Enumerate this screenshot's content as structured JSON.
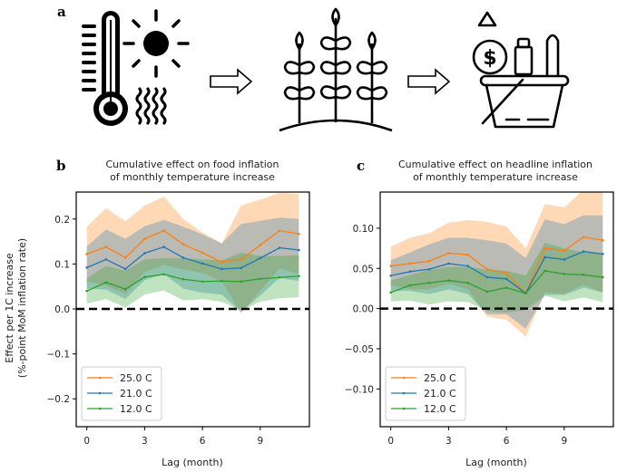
{
  "panel_labels": {
    "a": "a",
    "b": "b",
    "c": "c"
  },
  "icons": [
    "thermometer-sun-heat-icon",
    "arrow-right-icon",
    "crops-plants-icon",
    "arrow-right-icon",
    "grocery-basket-price-icon"
  ],
  "icon_text": {
    "dollar": "$"
  },
  "chart_data": [
    {
      "type": "line",
      "title_line1": "Cumulative effect on food inflation",
      "title_line2": "of monthly temperature increase",
      "xlabel": "Lag (month)",
      "ylabel_line1": "Effect per 1C increase",
      "ylabel_line2": "(%-point MoM inflation rate)",
      "x": [
        0,
        1,
        2,
        3,
        4,
        5,
        6,
        7,
        8,
        9,
        10,
        11
      ],
      "xticks": [
        0,
        3,
        6,
        9
      ],
      "xtick_labels": [
        "0",
        "3",
        "6",
        "9"
      ],
      "xlim": [
        -0.55,
        11.55
      ],
      "ylim": [
        -0.262,
        0.26
      ],
      "yticks": [
        -0.2,
        -0.1,
        0.0,
        0.1,
        0.2
      ],
      "ytick_labels": [
        "−0.2",
        "−0.1",
        "0.0",
        "0.1",
        "0.2"
      ],
      "reference_line": 0,
      "legend_position": "lower-left",
      "series": [
        {
          "name": "25.0 C",
          "color": "#ff7f0e",
          "values": [
            0.122,
            0.138,
            0.114,
            0.156,
            0.174,
            0.144,
            0.125,
            0.104,
            0.11,
            0.142,
            0.174,
            0.167
          ],
          "upper": [
            0.183,
            0.224,
            0.195,
            0.23,
            0.25,
            0.2,
            0.17,
            0.146,
            0.23,
            0.243,
            0.258,
            0.256
          ],
          "lower": [
            0.061,
            0.052,
            0.033,
            0.082,
            0.098,
            0.088,
            0.08,
            0.062,
            -0.01,
            0.041,
            0.09,
            0.078
          ]
        },
        {
          "name": "21.0 C",
          "color": "#1f77b4",
          "values": [
            0.092,
            0.11,
            0.089,
            0.124,
            0.138,
            0.114,
            0.101,
            0.089,
            0.091,
            0.113,
            0.136,
            0.131
          ],
          "upper": [
            0.139,
            0.177,
            0.156,
            0.184,
            0.198,
            0.183,
            0.166,
            0.146,
            0.189,
            0.196,
            0.203,
            0.2
          ],
          "lower": [
            0.045,
            0.043,
            0.022,
            0.064,
            0.078,
            0.045,
            0.036,
            0.032,
            -0.007,
            0.03,
            0.069,
            0.062
          ]
        },
        {
          "name": "12.0 C",
          "color": "#2ca02c",
          "values": [
            0.04,
            0.059,
            0.044,
            0.071,
            0.077,
            0.066,
            0.061,
            0.062,
            0.061,
            0.067,
            0.07,
            0.073
          ],
          "upper": [
            0.068,
            0.096,
            0.085,
            0.11,
            0.113,
            0.113,
            0.11,
            0.108,
            0.125,
            0.118,
            0.118,
            0.12
          ],
          "lower": [
            0.012,
            0.022,
            0.003,
            0.032,
            0.041,
            0.019,
            0.022,
            0.016,
            -0.003,
            0.016,
            0.024,
            0.026
          ]
        }
      ]
    },
    {
      "type": "line",
      "title_line1": "Cumulative effect on headline inflation",
      "title_line2": "of monthly temperature increase",
      "xlabel": "Lag (month)",
      "x": [
        0,
        1,
        2,
        3,
        4,
        5,
        6,
        7,
        8,
        9,
        10,
        11
      ],
      "xticks": [
        0,
        3,
        6,
        9
      ],
      "xtick_labels": [
        "0",
        "3",
        "6",
        "9"
      ],
      "xlim": [
        -0.55,
        11.55
      ],
      "ylim": [
        -0.147,
        0.145
      ],
      "yticks": [
        -0.1,
        -0.05,
        0.0,
        0.05,
        0.1
      ],
      "ytick_labels": [
        "−0.10",
        "−0.05",
        "0.00",
        "0.05",
        "0.10"
      ],
      "reference_line": 0,
      "legend_position": "lower-left",
      "series": [
        {
          "name": "25.0 C",
          "color": "#ff7f0e",
          "values": [
            0.053,
            0.056,
            0.059,
            0.069,
            0.067,
            0.049,
            0.044,
            0.019,
            0.075,
            0.072,
            0.089,
            0.085
          ],
          "upper": [
            0.077,
            0.088,
            0.094,
            0.107,
            0.11,
            0.108,
            0.102,
            0.075,
            0.13,
            0.126,
            0.148,
            0.15
          ],
          "lower": [
            0.029,
            0.024,
            0.024,
            0.031,
            0.024,
            -0.01,
            -0.014,
            -0.035,
            0.02,
            0.018,
            0.03,
            0.02
          ]
        },
        {
          "name": "21.0 C",
          "color": "#1f77b4",
          "values": [
            0.041,
            0.046,
            0.049,
            0.056,
            0.053,
            0.039,
            0.037,
            0.019,
            0.064,
            0.061,
            0.071,
            0.068
          ],
          "upper": [
            0.06,
            0.07,
            0.08,
            0.088,
            0.088,
            0.085,
            0.081,
            0.063,
            0.111,
            0.105,
            0.116,
            0.116
          ],
          "lower": [
            0.022,
            0.022,
            0.018,
            0.024,
            0.018,
            -0.007,
            -0.007,
            -0.025,
            0.017,
            0.017,
            0.026,
            0.02
          ]
        },
        {
          "name": "12.0 C",
          "color": "#2ca02c",
          "values": [
            0.02,
            0.029,
            0.032,
            0.035,
            0.032,
            0.021,
            0.026,
            0.019,
            0.047,
            0.043,
            0.042,
            0.039
          ],
          "upper": [
            0.035,
            0.042,
            0.048,
            0.052,
            0.052,
            0.048,
            0.047,
            0.041,
            0.082,
            0.075,
            0.07,
            0.068
          ],
          "lower": [
            0.009,
            0.01,
            0.005,
            0.009,
            0.008,
            -0.003,
            -0.005,
            -0.002,
            0.016,
            0.009,
            0.014,
            0.008
          ]
        }
      ]
    }
  ]
}
